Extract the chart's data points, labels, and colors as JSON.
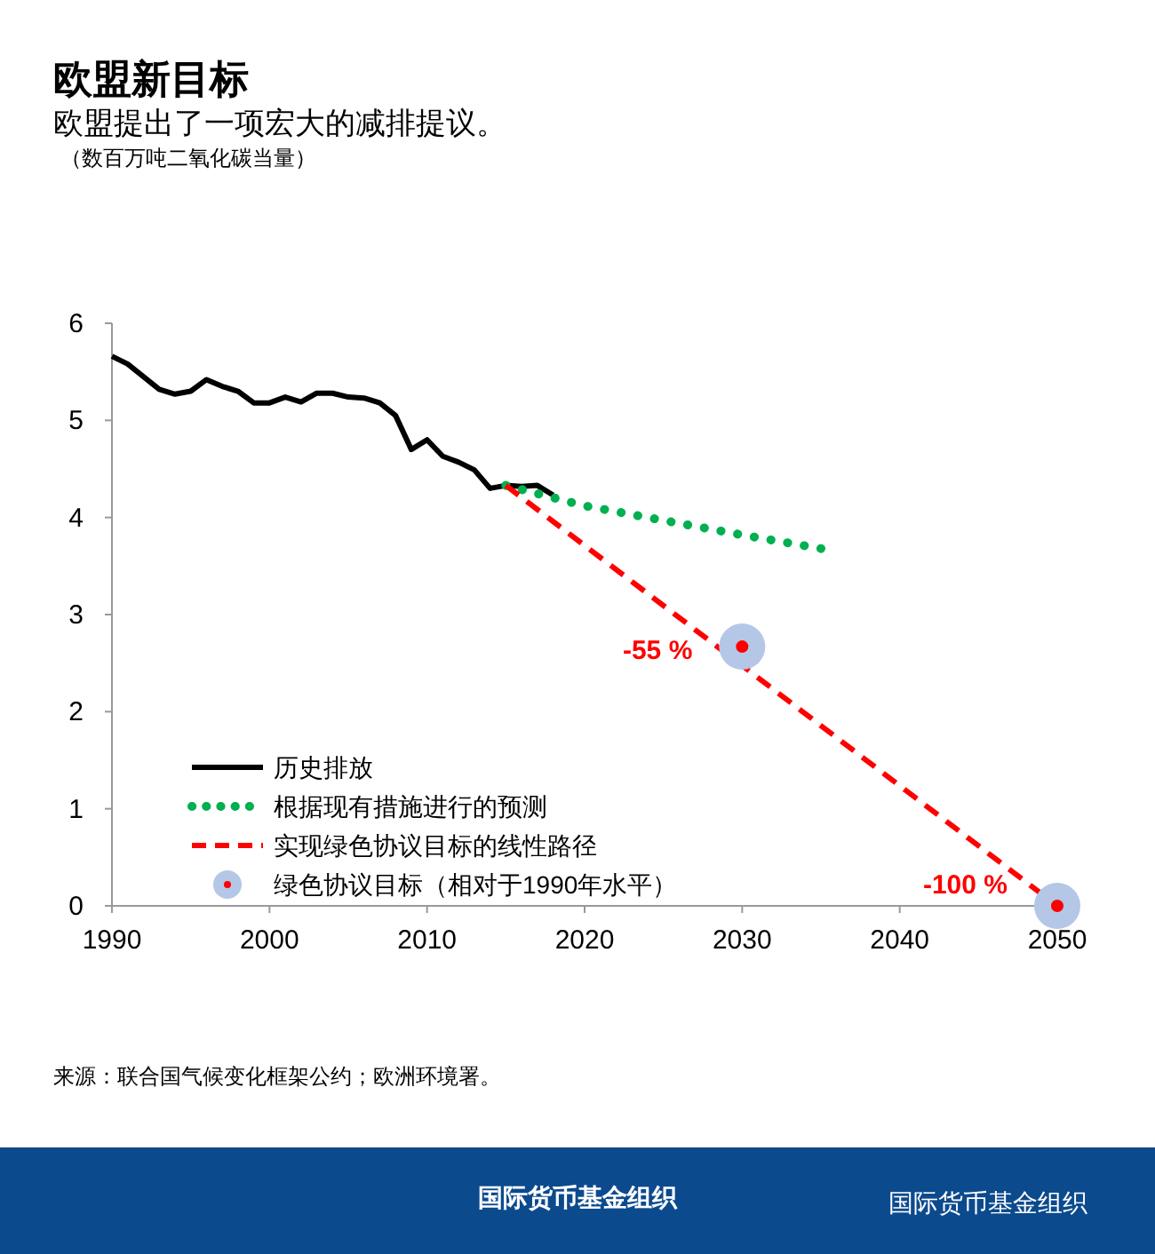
{
  "chart_data": {
    "type": "line",
    "title": "欧盟新目标",
    "subtitle": "欧盟提出了一项宏大的减排提议。",
    "xlim": [
      1990,
      2050
    ],
    "xticks": [
      1990,
      2000,
      2010,
      2020,
      2030,
      2040,
      2050
    ],
    "ylim": [
      0,
      6
    ],
    "yticks": [
      0,
      1,
      2,
      3,
      4,
      5,
      6
    ],
    "grid": false,
    "legend": "bottom left",
    "series": [
      {
        "name": "历史排放",
        "color": "#000000",
        "line_style": "solid",
        "x": [
          1990,
          1991,
          1992,
          1993,
          1994,
          1995,
          1996,
          1997,
          1998,
          1999,
          2000,
          2001,
          2002,
          2003,
          2004,
          2005,
          2006,
          2007,
          2008,
          2009,
          2010,
          2011,
          2012,
          2013,
          2014,
          2015,
          2016,
          2017,
          2018
        ],
        "values": [
          5.66,
          5.58,
          5.45,
          5.32,
          5.27,
          5.3,
          5.42,
          5.35,
          5.3,
          5.18,
          5.18,
          5.24,
          5.19,
          5.28,
          5.28,
          5.24,
          5.23,
          5.18,
          5.05,
          4.7,
          4.8,
          4.63,
          4.57,
          4.49,
          4.3,
          4.33,
          4.32,
          4.33,
          4.23
        ]
      },
      {
        "name": "根据现有措施进行的预测",
        "color": "#00b050",
        "line_style": "dotted",
        "x": [
          2015,
          2020,
          2025,
          2030,
          2035
        ],
        "values": [
          4.33,
          4.12,
          3.97,
          3.82,
          3.68
        ]
      },
      {
        "name": "实现绿色协议目标的线性路径",
        "color": "#ff0000",
        "line_style": "dashed",
        "x": [
          2015,
          2050
        ],
        "values": [
          4.33,
          0
        ]
      },
      {
        "name": "绿色协议目标（相对于1990年水平）",
        "type": "scatter",
        "marker": "circle",
        "color": "#b4c7e7",
        "x": [
          2030,
          2050
        ],
        "values": [
          2.67,
          0
        ]
      }
    ],
    "annotations": [
      {
        "text": "-55 %",
        "x": 2030,
        "y": 2.67
      },
      {
        "text": "-100 %",
        "x": 2050,
        "y": 0
      },
      "（数百万吨二氧化碳当量）",
      "来源：联合国气候变化框架公约；欧洲环境署。",
      "国际货币基金组织",
      "国际货币基金组织"
    ]
  }
}
